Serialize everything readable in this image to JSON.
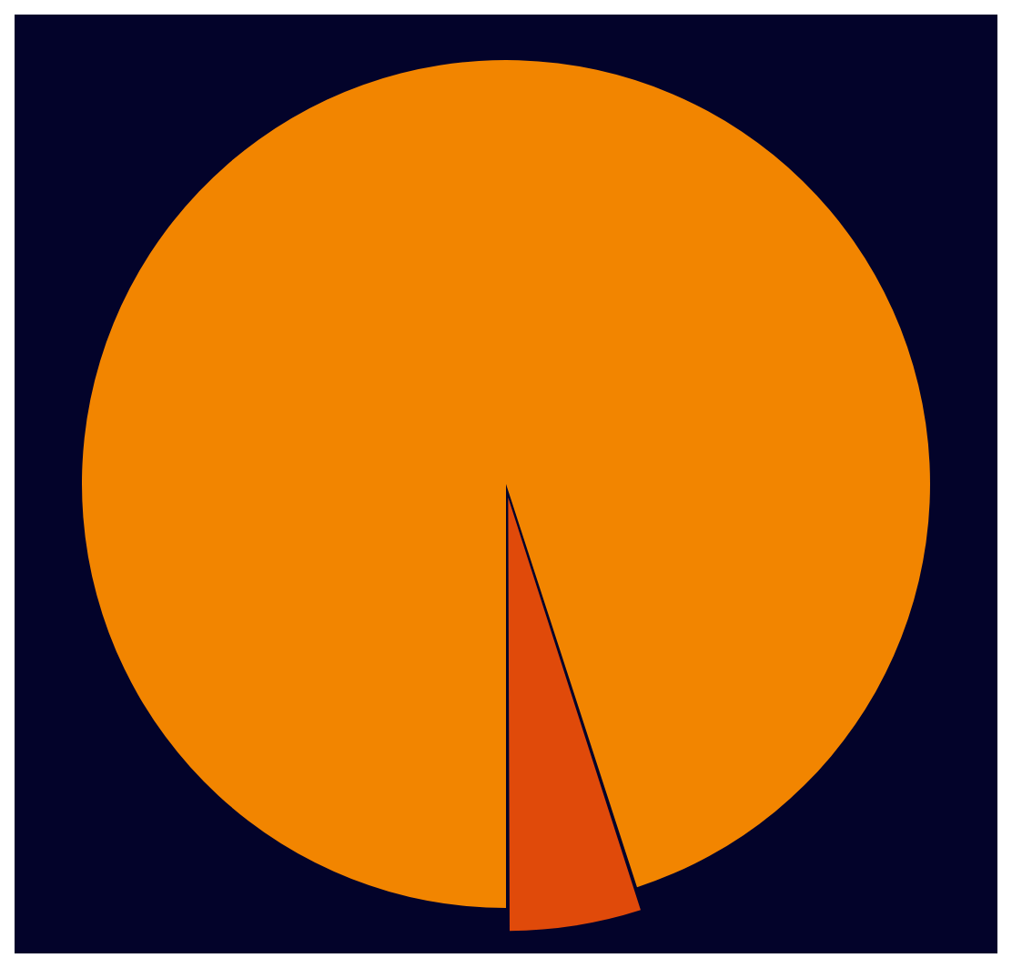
{
  "chart_data": {
    "type": "pie",
    "categories": [
      null,
      null
    ],
    "values": [
      95,
      5
    ],
    "colors": [
      "#f28500",
      "#e04a0a"
    ],
    "legend": false
  }
}
